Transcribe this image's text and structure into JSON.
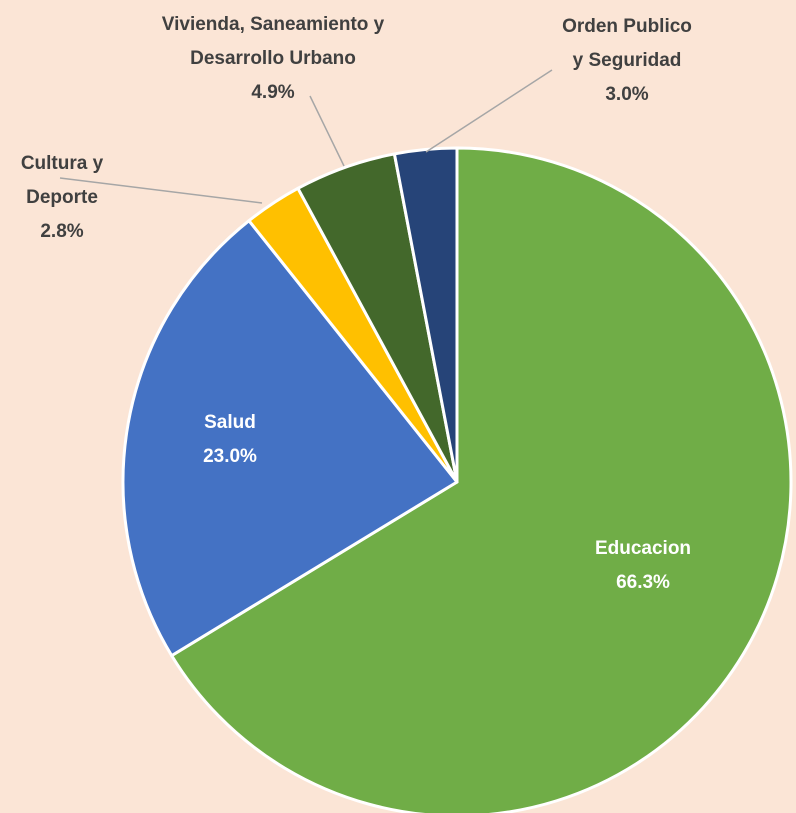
{
  "chart_data": {
    "type": "pie",
    "categories": [
      [
        "Educacion"
      ],
      [
        "Salud"
      ],
      [
        "Cultura y",
        "Deporte"
      ],
      [
        "Vivienda, Saneamiento y",
        "Desarrollo Urbano"
      ],
      [
        "Orden Publico",
        "y Seguridad"
      ]
    ],
    "values": [
      66.3,
      23.0,
      2.8,
      4.9,
      3.0
    ],
    "value_labels": [
      "66.3%",
      "23.0%",
      "2.8%",
      "4.9%",
      "3.0%"
    ],
    "colors": [
      "#70ad47",
      "#4472c4",
      "#ffc000",
      "#43682b",
      "#264478"
    ]
  }
}
